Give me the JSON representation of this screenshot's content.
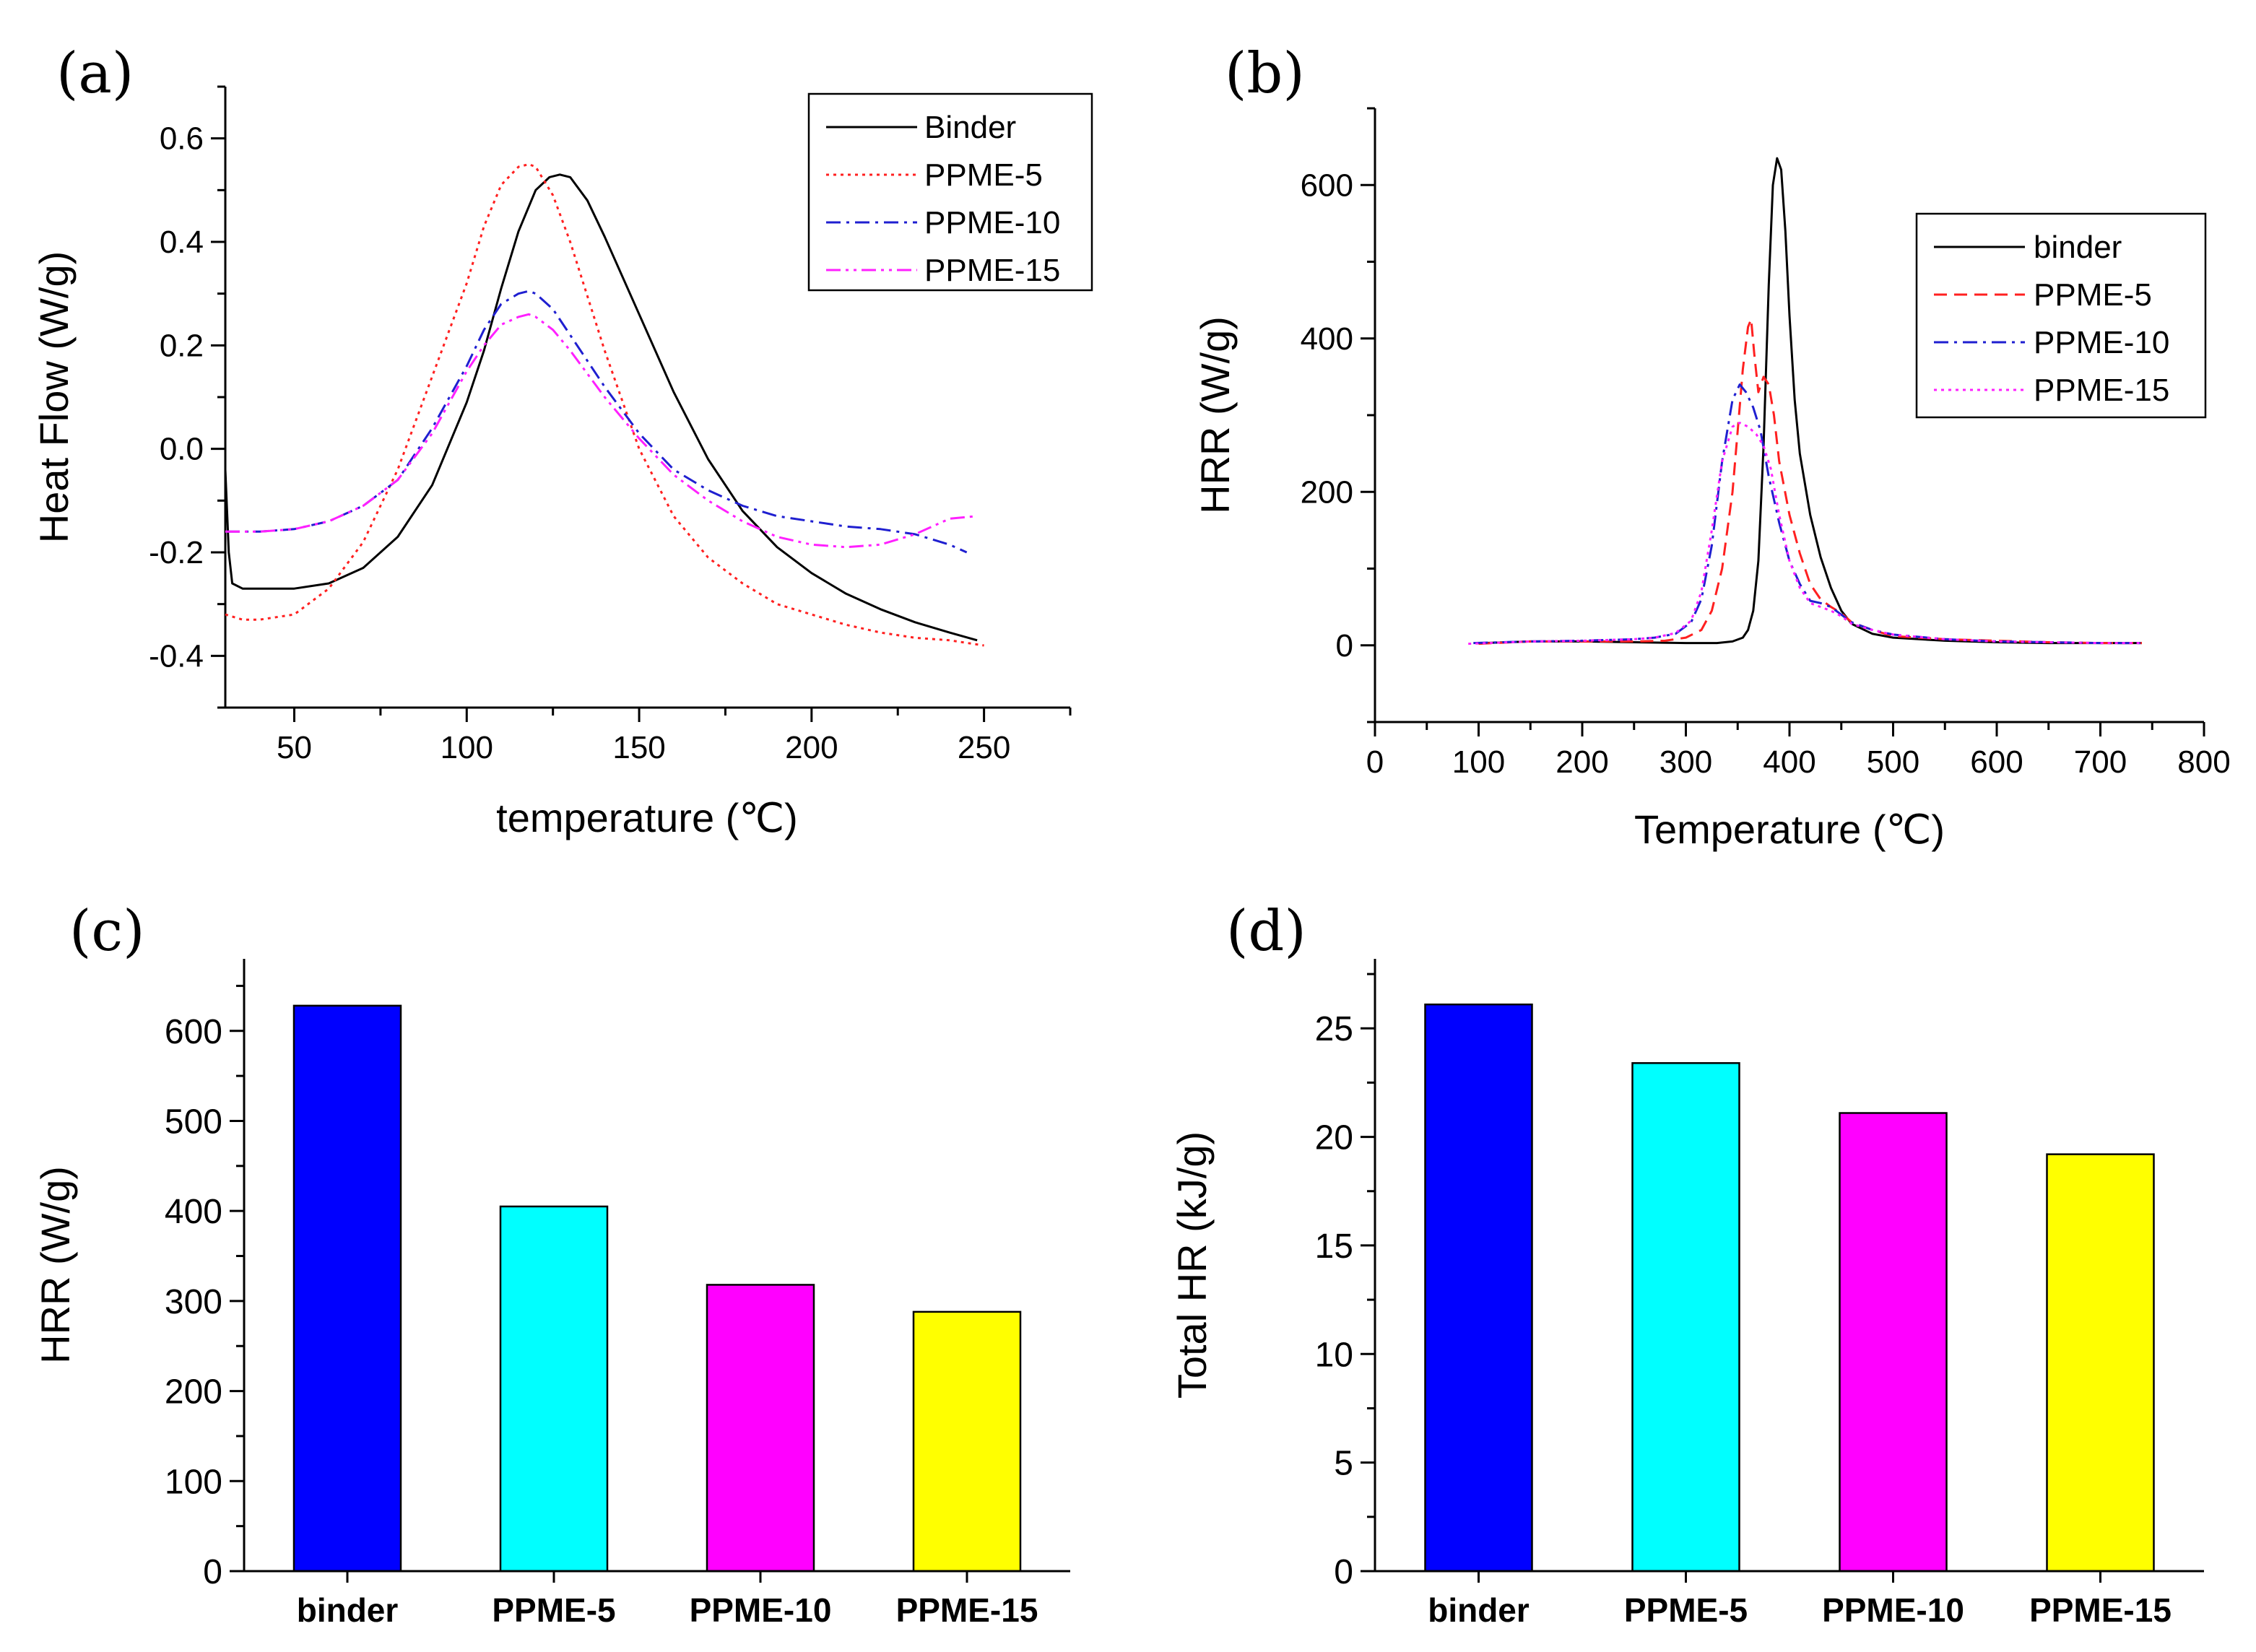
{
  "chart_data": [
    {
      "panel_label": "(a)",
      "type": "line",
      "xlabel": "temperature (℃)",
      "ylabel": "Heat Flow (W/g)",
      "xlim": [
        30,
        275
      ],
      "ylim": [
        -0.5,
        0.7
      ],
      "xticks": [
        50,
        100,
        150,
        200,
        250
      ],
      "yticks": [
        -0.4,
        -0.2,
        0.0,
        0.2,
        0.4,
        0.6
      ],
      "ytick_labels": [
        "-0.4",
        "-0.2",
        "0.0",
        "0.2",
        "0.4",
        "0.6"
      ],
      "grid": false,
      "legend_position": "top-right",
      "series": [
        {
          "name": "Binder",
          "color": "#000000",
          "dash": "solid",
          "x": [
            30,
            31,
            32,
            35,
            40,
            50,
            60,
            70,
            80,
            90,
            100,
            105,
            110,
            115,
            120,
            124,
            127,
            130,
            135,
            140,
            150,
            160,
            170,
            180,
            190,
            200,
            210,
            220,
            230,
            240,
            248
          ],
          "y": [
            -0.04,
            -0.2,
            -0.26,
            -0.27,
            -0.27,
            -0.27,
            -0.26,
            -0.23,
            -0.17,
            -0.07,
            0.09,
            0.19,
            0.31,
            0.42,
            0.5,
            0.525,
            0.53,
            0.525,
            0.48,
            0.41,
            0.26,
            0.11,
            -0.02,
            -0.12,
            -0.19,
            -0.24,
            -0.28,
            -0.31,
            -0.335,
            -0.355,
            -0.37
          ]
        },
        {
          "name": "PPME-5",
          "color": "#ff2020",
          "dash": "dotted",
          "x": [
            30,
            35,
            40,
            50,
            60,
            70,
            80,
            90,
            100,
            105,
            110,
            115,
            118,
            120,
            125,
            130,
            140,
            150,
            160,
            170,
            180,
            190,
            200,
            210,
            220,
            230,
            240,
            250
          ],
          "y": [
            -0.32,
            -0.33,
            -0.33,
            -0.32,
            -0.27,
            -0.18,
            -0.04,
            0.14,
            0.32,
            0.43,
            0.51,
            0.545,
            0.55,
            0.545,
            0.49,
            0.4,
            0.19,
            0.0,
            -0.13,
            -0.21,
            -0.26,
            -0.3,
            -0.32,
            -0.34,
            -0.355,
            -0.365,
            -0.37,
            -0.38
          ]
        },
        {
          "name": "PPME-10",
          "color": "#1f1fd0",
          "dash": "dashdot",
          "x": [
            30,
            40,
            50,
            60,
            70,
            80,
            90,
            100,
            105,
            110,
            115,
            118,
            120,
            125,
            130,
            140,
            150,
            160,
            170,
            180,
            190,
            200,
            210,
            220,
            230,
            240,
            245
          ],
          "y": [
            -0.16,
            -0.16,
            -0.155,
            -0.14,
            -0.11,
            -0.06,
            0.04,
            0.16,
            0.23,
            0.28,
            0.3,
            0.305,
            0.3,
            0.27,
            0.22,
            0.12,
            0.03,
            -0.04,
            -0.08,
            -0.11,
            -0.13,
            -0.14,
            -0.15,
            -0.155,
            -0.165,
            -0.185,
            -0.2
          ]
        },
        {
          "name": "PPME-15",
          "color": "#ff20ff",
          "dash": "dashdotdot",
          "x": [
            30,
            40,
            50,
            60,
            70,
            80,
            90,
            100,
            105,
            110,
            115,
            118,
            120,
            125,
            130,
            140,
            150,
            160,
            170,
            180,
            190,
            200,
            210,
            220,
            230,
            240,
            248
          ],
          "y": [
            -0.16,
            -0.16,
            -0.155,
            -0.14,
            -0.11,
            -0.06,
            0.03,
            0.15,
            0.2,
            0.24,
            0.255,
            0.26,
            0.255,
            0.23,
            0.19,
            0.1,
            0.02,
            -0.05,
            -0.1,
            -0.14,
            -0.17,
            -0.185,
            -0.19,
            -0.185,
            -0.165,
            -0.135,
            -0.13
          ]
        }
      ]
    },
    {
      "panel_label": "(b)",
      "type": "line",
      "xlabel": "Temperature (℃)",
      "ylabel": "HRR (W/g)",
      "xlim": [
        0,
        800
      ],
      "ylim": [
        -100,
        700
      ],
      "xticks": [
        0,
        100,
        200,
        300,
        400,
        500,
        600,
        700,
        800
      ],
      "yticks": [
        0,
        200,
        400,
        600
      ],
      "ytick_labels": [
        "0",
        "200",
        "400",
        "600"
      ],
      "grid": false,
      "legend_position": "right",
      "series": [
        {
          "name": "binder",
          "color": "#000000",
          "dash": "solid",
          "x": [
            105,
            150,
            200,
            250,
            300,
            330,
            345,
            355,
            360,
            365,
            370,
            375,
            380,
            384,
            388,
            392,
            396,
            400,
            405,
            410,
            420,
            430,
            440,
            450,
            460,
            480,
            500,
            550,
            600,
            650,
            700,
            740
          ],
          "y": [
            3,
            5,
            5,
            4,
            3,
            3,
            5,
            10,
            20,
            45,
            110,
            260,
            470,
            600,
            635,
            620,
            540,
            430,
            320,
            250,
            170,
            115,
            75,
            45,
            28,
            15,
            10,
            6,
            4,
            3,
            3,
            3
          ]
        },
        {
          "name": "PPME-5",
          "color": "#ff2020",
          "dash": "dashed",
          "x": [
            100,
            150,
            200,
            250,
            280,
            300,
            315,
            325,
            335,
            345,
            350,
            355,
            360,
            363,
            366,
            370,
            375,
            380,
            385,
            390,
            400,
            410,
            420,
            430,
            440,
            450,
            460,
            480,
            500,
            550,
            600,
            650,
            700,
            740
          ],
          "y": [
            2,
            5,
            5,
            5,
            6,
            10,
            20,
            45,
            100,
            200,
            280,
            360,
            415,
            425,
            380,
            330,
            350,
            340,
            300,
            240,
            170,
            120,
            80,
            60,
            50,
            42,
            30,
            20,
            12,
            8,
            6,
            4,
            3,
            3
          ]
        },
        {
          "name": "PPME-10",
          "color": "#1f1fd0",
          "dash": "dashdot",
          "x": [
            95,
            150,
            200,
            250,
            270,
            290,
            305,
            315,
            325,
            335,
            345,
            352,
            358,
            365,
            372,
            380,
            390,
            400,
            410,
            420,
            430,
            440,
            450,
            460,
            480,
            500,
            550,
            600,
            650,
            700,
            740
          ],
          "y": [
            3,
            5,
            6,
            8,
            10,
            15,
            30,
            60,
            130,
            240,
            320,
            340,
            330,
            310,
            280,
            220,
            160,
            110,
            80,
            58,
            55,
            50,
            40,
            30,
            20,
            14,
            8,
            5,
            4,
            3,
            3
          ]
        },
        {
          "name": "PPME-15",
          "color": "#ff20ff",
          "dash": "dotted",
          "x": [
            90,
            150,
            200,
            250,
            270,
            290,
            305,
            315,
            325,
            335,
            345,
            352,
            360,
            368,
            375,
            382,
            390,
            400,
            410,
            420,
            430,
            440,
            450,
            460,
            480,
            500,
            550,
            600,
            650,
            700,
            740
          ],
          "y": [
            2,
            5,
            6,
            8,
            10,
            16,
            32,
            70,
            150,
            240,
            285,
            290,
            285,
            275,
            260,
            230,
            170,
            110,
            75,
            55,
            50,
            45,
            38,
            28,
            20,
            14,
            8,
            5,
            4,
            3,
            3
          ]
        }
      ]
    },
    {
      "panel_label": "(c)",
      "type": "bar",
      "ylabel": "HRR (W/g)",
      "xlabel": "",
      "ylim": [
        0,
        680
      ],
      "yticks": [
        0,
        100,
        200,
        300,
        400,
        500,
        600
      ],
      "ytick_labels": [
        "0",
        "100",
        "200",
        "300",
        "400",
        "500",
        "600"
      ],
      "categories": [
        "binder",
        "PPME-5",
        "PPME-10",
        "PPME-15"
      ],
      "values": [
        628,
        405,
        318,
        288
      ],
      "colors": [
        "#0000ff",
        "#00ffff",
        "#ff00ff",
        "#ffff00"
      ]
    },
    {
      "panel_label": "(d)",
      "type": "bar",
      "ylabel": "Total HR (kJ/g)",
      "xlabel": "",
      "ylim": [
        0,
        28.2
      ],
      "yticks": [
        0,
        5,
        10,
        15,
        20,
        25
      ],
      "ytick_labels": [
        "0",
        "5",
        "10",
        "15",
        "20",
        "25"
      ],
      "categories": [
        "binder",
        "PPME-5",
        "PPME-10",
        "PPME-15"
      ],
      "values": [
        26.1,
        23.4,
        21.1,
        19.2
      ],
      "colors": [
        "#0000ff",
        "#00ffff",
        "#ff00ff",
        "#ffff00"
      ]
    }
  ]
}
